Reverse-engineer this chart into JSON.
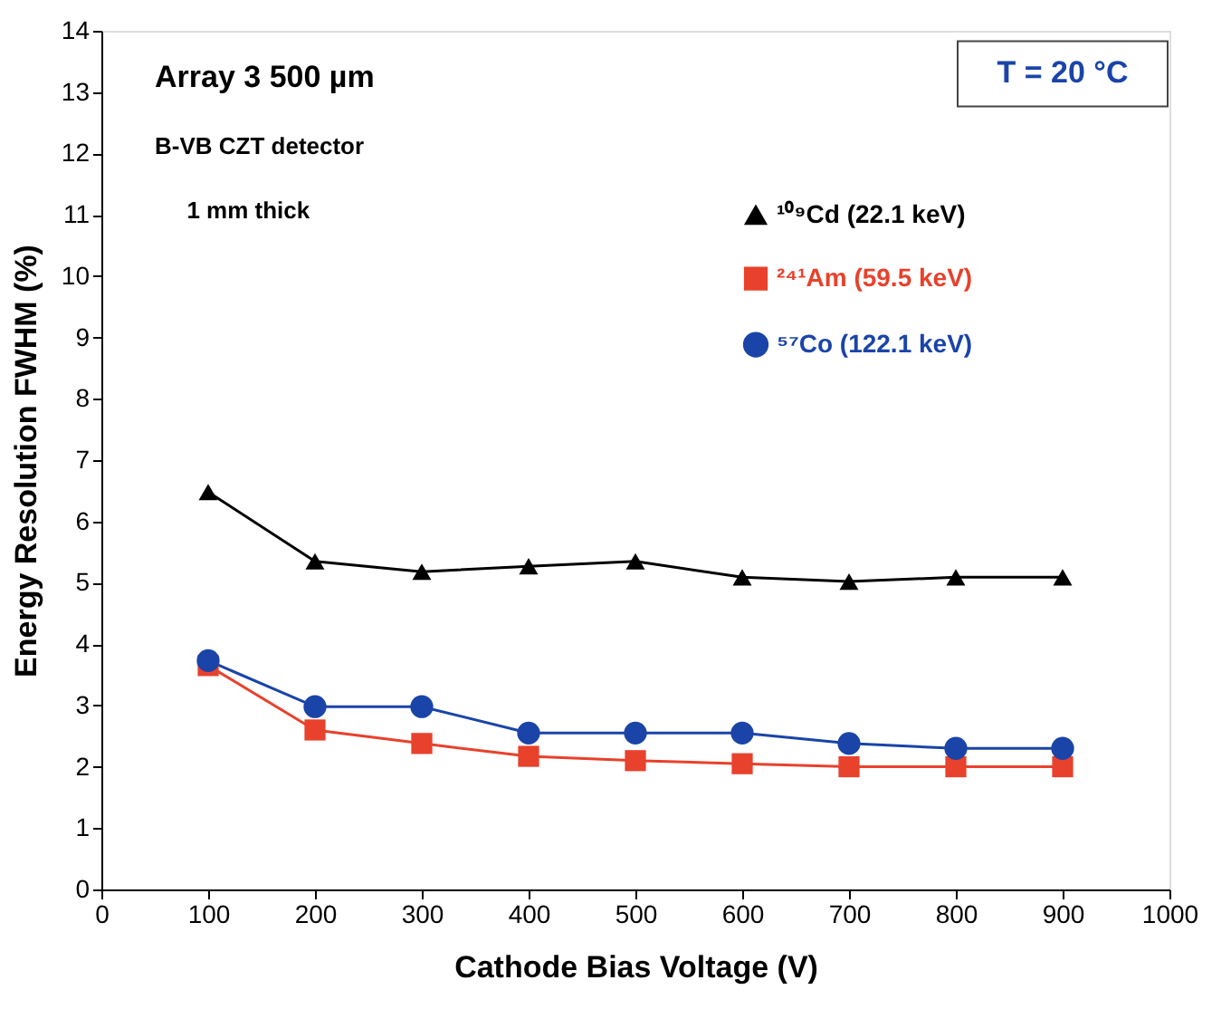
{
  "chart_data": {
    "type": "line",
    "xlabel": "Cathode Bias Voltage (V)",
    "ylabel": "Energy Resolution FWHM (%)",
    "x": [
      100,
      200,
      300,
      400,
      500,
      600,
      700,
      800,
      900
    ],
    "series": [
      {
        "name": "¹⁰⁹Cd (22.1 keV)",
        "color": "#000000",
        "marker": "triangle",
        "values": [
          6.48,
          5.35,
          5.18,
          5.27,
          5.35,
          5.09,
          5.02,
          5.09,
          5.09
        ]
      },
      {
        "name": "²⁴¹Am (59.5 keV)",
        "color": "#e8412c",
        "marker": "square",
        "values": [
          3.65,
          2.6,
          2.38,
          2.17,
          2.1,
          2.05,
          2.0,
          2.0,
          2.0
        ]
      },
      {
        "name": "⁵⁷Co (122.1 keV)",
        "color": "#1a44a8",
        "marker": "circle",
        "values": [
          3.73,
          2.98,
          2.98,
          2.55,
          2.55,
          2.55,
          2.38,
          2.3,
          2.3
        ]
      }
    ],
    "xlim": [
      0,
      1000
    ],
    "xticks": [
      0,
      100,
      200,
      300,
      400,
      500,
      600,
      700,
      800,
      900,
      1000
    ],
    "ylim": [
      0,
      14
    ],
    "yticks": [
      0,
      1,
      2,
      3,
      4,
      5,
      6,
      7,
      8,
      9,
      10,
      11,
      12,
      13,
      14
    ],
    "grid": false,
    "legend": "top right",
    "line_style": "solid",
    "annotations": [
      "Array 3   500 µm",
      "B-VB CZT detector",
      "1 mm thick",
      "T = 20 °C"
    ]
  }
}
